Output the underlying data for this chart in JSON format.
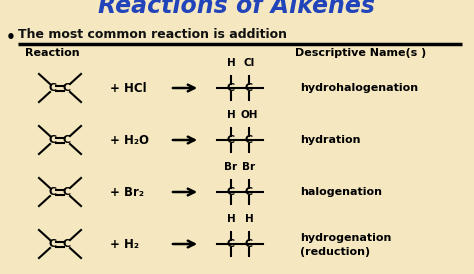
{
  "bg_color": "#f5e8c0",
  "title_text": "Reactions of Alkenes",
  "title_color": "#2244bb",
  "subtitle": "The most common reaction is addition",
  "subtitle_color": "#111111",
  "header_reaction": "Reaction",
  "header_name": "Descriptive Name(s )",
  "reactions": [
    {
      "reagent": "+ HCl",
      "top1": "H",
      "top2": "Cl",
      "name": "hydrohalogenation"
    },
    {
      "reagent": "+ H₂O",
      "top1": "H",
      "top2": "OH",
      "name": "hydration"
    },
    {
      "reagent": "+ Br₂",
      "top1": "Br",
      "top2": "Br",
      "name": "halogenation"
    },
    {
      "reagent": "+ H₂",
      "top1": "H",
      "top2": "H",
      "name": "hydrogenation\n(reduction)"
    }
  ]
}
